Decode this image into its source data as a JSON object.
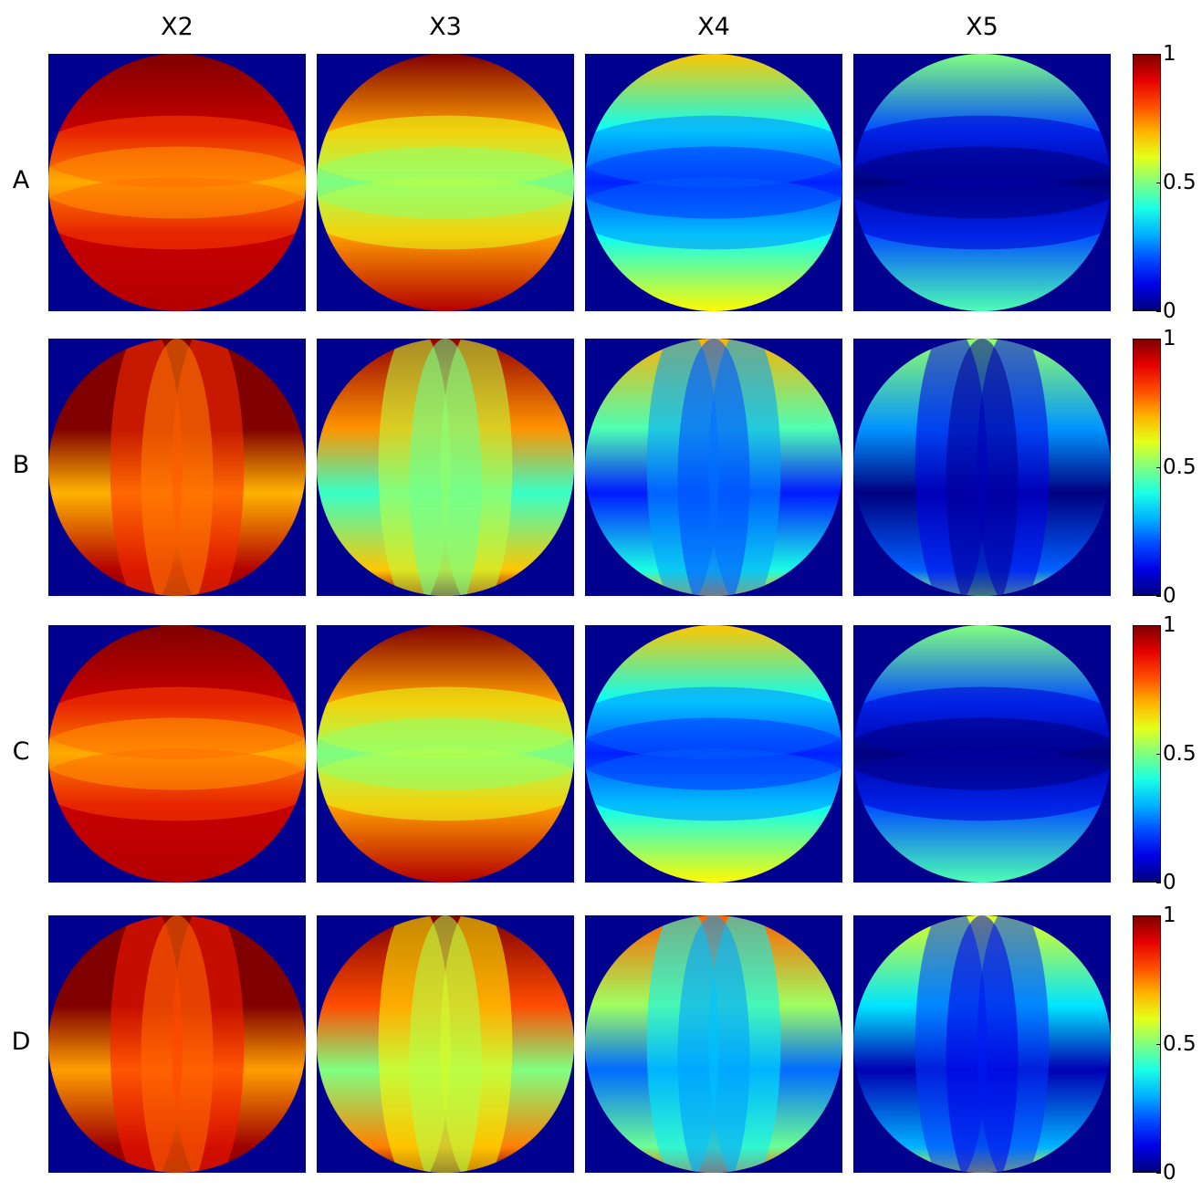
{
  "chart_data": {
    "type": "heatmap",
    "columns": [
      "X2",
      "X3",
      "X4",
      "X5"
    ],
    "rows": [
      "A",
      "B",
      "C",
      "D"
    ],
    "colormap": "jet",
    "colorbar": {
      "min": 0,
      "max": 1,
      "ticks": [
        {
          "value": 0,
          "label": "0"
        },
        {
          "value": 0.5,
          "label": "0.5"
        },
        {
          "value": 1,
          "label": "1"
        }
      ]
    },
    "background_color": "#00008f",
    "approx_mean_level": {
      "A": [
        0.93,
        0.72,
        0.38,
        0.2
      ],
      "B": [
        0.95,
        0.68,
        0.4,
        0.22
      ],
      "C": [
        0.93,
        0.72,
        0.38,
        0.2
      ],
      "D": [
        0.97,
        0.75,
        0.48,
        0.3
      ]
    },
    "pattern_orientation": {
      "A": "horizontal",
      "B": "vertical",
      "C": "horizontal",
      "D": "vertical"
    }
  }
}
